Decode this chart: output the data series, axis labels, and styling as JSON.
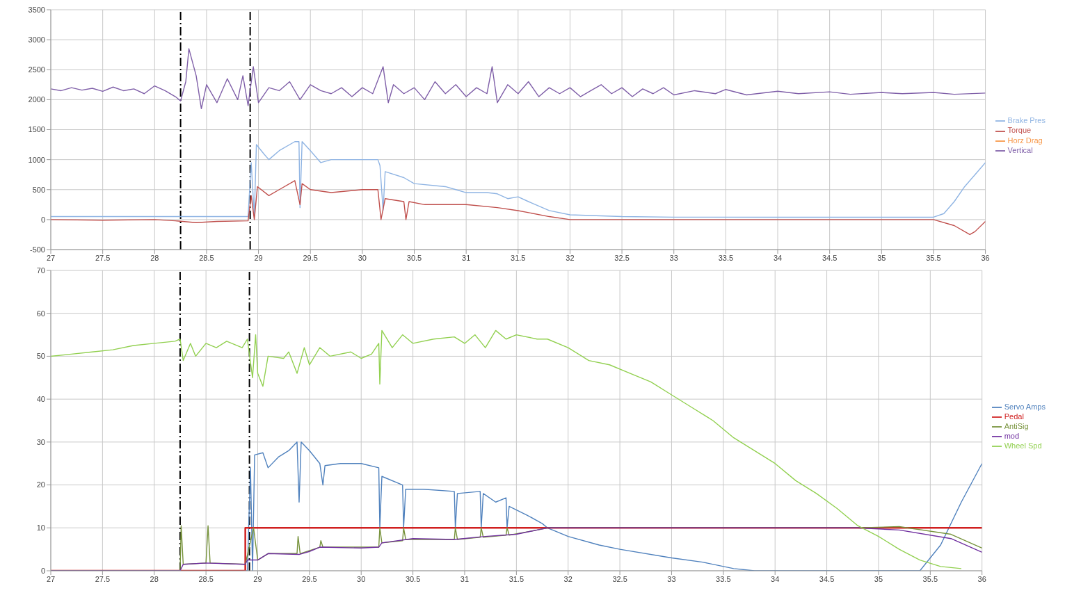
{
  "chart_data": [
    {
      "type": "line",
      "xlim": [
        27,
        36
      ],
      "xticks": [
        27,
        27.5,
        28,
        28.5,
        29,
        29.5,
        30,
        30.5,
        31,
        31.5,
        32,
        32.5,
        33,
        33.5,
        34,
        34.5,
        35,
        35.5,
        36
      ],
      "ylim": [
        -500,
        3500
      ],
      "yticks": [
        -500,
        0,
        500,
        1000,
        1500,
        2000,
        2500,
        3000,
        3500
      ],
      "grid": true,
      "legend": "right",
      "ref_lines": [
        {
          "axis": "x",
          "value": 28.25,
          "color": "#000000",
          "line_style": "dashed"
        },
        {
          "axis": "x",
          "value": 28.92,
          "color": "#000000",
          "line_style": "dashed"
        }
      ],
      "series": [
        {
          "name": "Brake Pres",
          "color": "#8fb4e3",
          "x": [
            27,
            27.5,
            28,
            28.5,
            28.9,
            28.93,
            28.96,
            28.98,
            29.05,
            29.1,
            29.2,
            29.35,
            29.39,
            29.4,
            29.42,
            29.5,
            29.6,
            29.7,
            29.8,
            30,
            30.15,
            30.17,
            30.2,
            30.22,
            30.4,
            30.5,
            30.8,
            30.9,
            31,
            31.2,
            31.3,
            31.4,
            31.5,
            31.6,
            31.8,
            32,
            32.5,
            33,
            34,
            35,
            35.5,
            35.6,
            35.7,
            35.8,
            35.9,
            36
          ],
          "values": [
            50,
            50,
            50,
            50,
            50,
            950,
            50,
            1250,
            1100,
            1000,
            1150,
            1300,
            1300,
            200,
            1300,
            1150,
            950,
            1000,
            1000,
            1000,
            1000,
            900,
            150,
            800,
            700,
            600,
            550,
            500,
            450,
            450,
            430,
            350,
            380,
            300,
            150,
            80,
            50,
            40,
            40,
            40,
            40,
            100,
            300,
            550,
            750,
            950
          ]
        },
        {
          "name": "Torque",
          "color": "#c0504d",
          "x": [
            27,
            27.5,
            28,
            28.2,
            28.4,
            28.6,
            28.9,
            28.93,
            28.96,
            28.99,
            29.1,
            29.2,
            29.35,
            29.4,
            29.42,
            29.5,
            29.7,
            30,
            30.15,
            30.18,
            30.22,
            30.4,
            30.42,
            30.45,
            30.6,
            30.9,
            31,
            31.3,
            31.5,
            31.8,
            32,
            33,
            34,
            35,
            35.5,
            35.7,
            35.85,
            35.9,
            36
          ],
          "values": [
            0,
            -10,
            0,
            -20,
            -50,
            -30,
            -20,
            400,
            0,
            550,
            400,
            500,
            650,
            250,
            600,
            500,
            450,
            500,
            500,
            0,
            350,
            300,
            0,
            300,
            250,
            250,
            250,
            200,
            150,
            50,
            0,
            0,
            0,
            0,
            0,
            -100,
            -250,
            -200,
            -30
          ]
        },
        {
          "name": "Horz Drag",
          "color": "#f79646"
        },
        {
          "name": "Vertical",
          "color": "#7f5fa8",
          "x": [
            27,
            27.1,
            27.2,
            27.3,
            27.4,
            27.5,
            27.6,
            27.7,
            27.8,
            27.9,
            28,
            28.1,
            28.2,
            28.25,
            28.3,
            28.33,
            28.4,
            28.45,
            28.5,
            28.6,
            28.7,
            28.8,
            28.85,
            28.9,
            28.95,
            29,
            29.1,
            29.2,
            29.3,
            29.4,
            29.5,
            29.6,
            29.7,
            29.8,
            29.9,
            30,
            30.1,
            30.2,
            30.25,
            30.3,
            30.4,
            30.5,
            30.6,
            30.7,
            30.8,
            30.9,
            31,
            31.1,
            31.2,
            31.25,
            31.3,
            31.4,
            31.5,
            31.6,
            31.7,
            31.8,
            31.9,
            32,
            32.1,
            32.2,
            32.3,
            32.4,
            32.5,
            32.6,
            32.7,
            32.8,
            32.9,
            33,
            33.2,
            33.4,
            33.5,
            33.7,
            34,
            34.2,
            34.5,
            34.7,
            35,
            35.2,
            35.5,
            35.7,
            36
          ],
          "values": [
            2180,
            2150,
            2200,
            2160,
            2190,
            2140,
            2210,
            2150,
            2180,
            2100,
            2230,
            2150,
            2050,
            1980,
            2300,
            2850,
            2400,
            1850,
            2250,
            1950,
            2350,
            2000,
            2400,
            1900,
            2550,
            1950,
            2200,
            2150,
            2300,
            2000,
            2250,
            2150,
            2100,
            2200,
            2050,
            2200,
            2100,
            2550,
            1950,
            2250,
            2100,
            2200,
            2000,
            2300,
            2100,
            2250,
            2050,
            2200,
            2100,
            2550,
            1950,
            2250,
            2100,
            2300,
            2050,
            2200,
            2100,
            2200,
            2050,
            2150,
            2250,
            2100,
            2200,
            2050,
            2180,
            2100,
            2200,
            2080,
            2150,
            2100,
            2170,
            2080,
            2140,
            2100,
            2130,
            2090,
            2120,
            2100,
            2120,
            2090,
            2110
          ]
        }
      ]
    },
    {
      "type": "line",
      "xlim": [
        27,
        36
      ],
      "xticks": [
        27,
        27.5,
        28,
        28.5,
        29,
        29.5,
        30,
        30.5,
        31,
        31.5,
        32,
        32.5,
        33,
        33.5,
        34,
        34.5,
        35,
        35.5,
        36
      ],
      "ylim": [
        0,
        70
      ],
      "yticks": [
        0,
        10,
        20,
        30,
        40,
        50,
        60,
        70
      ],
      "grid": true,
      "legend": "right",
      "ref_lines": [
        {
          "axis": "x",
          "value": 28.25,
          "color": "#000000",
          "line_style": "dashed"
        },
        {
          "axis": "x",
          "value": 28.92,
          "color": "#000000",
          "line_style": "dashed"
        }
      ],
      "series": [
        {
          "name": "Servo Amps",
          "color": "#4f81bd",
          "x": [
            27,
            28.9,
            28.93,
            28.95,
            28.97,
            29.05,
            29.1,
            29.2,
            29.3,
            29.38,
            29.4,
            29.42,
            29.5,
            29.6,
            29.63,
            29.65,
            29.8,
            30,
            30.17,
            30.18,
            30.2,
            30.4,
            30.41,
            30.43,
            30.6,
            30.9,
            30.91,
            30.93,
            31.15,
            31.16,
            31.18,
            31.3,
            31.4,
            31.41,
            31.43,
            31.6,
            31.75,
            31.8,
            32,
            32.3,
            32.5,
            33,
            33.3,
            33.6,
            33.8,
            35.4,
            35.6,
            35.8,
            36
          ],
          "values": [
            0,
            0,
            24,
            0,
            27,
            27.5,
            24,
            26.5,
            28,
            30,
            16,
            30,
            28,
            25,
            20,
            24.5,
            25,
            25,
            24,
            10,
            22,
            20,
            10,
            19,
            19,
            18.5,
            10,
            18,
            18.5,
            10,
            18,
            16,
            17,
            10,
            15,
            13,
            11,
            10,
            8,
            6,
            5,
            3,
            2,
            0.5,
            0,
            0,
            6,
            16,
            25
          ]
        },
        {
          "name": "Pedal",
          "type": "step",
          "color": "#d02020",
          "x": [
            27,
            28.88,
            36
          ],
          "values": [
            0,
            10,
            10
          ]
        },
        {
          "name": "AntiSig",
          "color": "#77933c",
          "x": [
            27,
            28.25,
            28.26,
            28.28,
            28.5,
            28.52,
            28.54,
            28.88,
            28.96,
            29,
            29.1,
            29.38,
            29.39,
            29.41,
            29.6,
            29.61,
            29.63,
            30.17,
            30.18,
            30.2,
            30.4,
            30.41,
            30.43,
            30.9,
            30.91,
            30.93,
            31.15,
            31.16,
            31.18,
            31.4,
            31.41,
            31.43,
            31.7,
            31.8,
            34.8,
            35.2,
            35.7,
            36
          ],
          "values": [
            0,
            0,
            10.5,
            1.5,
            1.8,
            10.5,
            1.8,
            1.5,
            10,
            2.5,
            4,
            4,
            8,
            4,
            5.5,
            7,
            5.5,
            5.5,
            10,
            6.5,
            7,
            10,
            7.3,
            7.3,
            10,
            7.3,
            7.8,
            10,
            7.8,
            8.3,
            10,
            8.3,
            9.5,
            10,
            10,
            10.3,
            8.5,
            5.3
          ]
        },
        {
          "name": "mod",
          "color": "#7030a0",
          "x": [
            27,
            28.25,
            28.28,
            28.5,
            28.88,
            28.9,
            29,
            29.1,
            29.4,
            29.5,
            29.6,
            30,
            30.17,
            30.2,
            30.5,
            30.9,
            31.2,
            31.5,
            31.7,
            31.8,
            34.8,
            35.2,
            35.7,
            36
          ],
          "values": [
            0,
            0,
            1.5,
            1.8,
            1.5,
            2.5,
            2.5,
            4,
            3.8,
            4.5,
            5.5,
            5.3,
            5.5,
            6.5,
            7.5,
            7.3,
            8,
            8.5,
            9.5,
            10,
            10,
            9.5,
            7.5,
            4.3
          ]
        },
        {
          "name": "Wheel Spd",
          "color": "#92d050",
          "x": [
            27,
            27.2,
            27.4,
            27.6,
            27.8,
            28,
            28.2,
            28.25,
            28.28,
            28.35,
            28.4,
            28.5,
            28.6,
            28.7,
            28.85,
            28.9,
            28.95,
            28.98,
            29,
            29.05,
            29.1,
            29.25,
            29.3,
            29.38,
            29.45,
            29.5,
            29.6,
            29.7,
            29.9,
            30,
            30.1,
            30.17,
            30.18,
            30.2,
            30.3,
            30.4,
            30.5,
            30.7,
            30.9,
            31,
            31.1,
            31.2,
            31.3,
            31.4,
            31.5,
            31.7,
            31.8,
            32,
            32.2,
            32.4,
            32.6,
            32.8,
            33,
            33.2,
            33.4,
            33.6,
            33.8,
            34,
            34.2,
            34.4,
            34.6,
            34.8,
            35,
            35.2,
            35.4,
            35.6,
            35.8
          ],
          "values": [
            50,
            50.5,
            51,
            51.5,
            52.5,
            53,
            53.5,
            54,
            49,
            53,
            50,
            53,
            52,
            53.5,
            52,
            54,
            45,
            55,
            46,
            43,
            50,
            49.5,
            51,
            46,
            52,
            48,
            52,
            50,
            51,
            49.5,
            50.5,
            53,
            43.5,
            56,
            52,
            55,
            53,
            54,
            54.5,
            53,
            55,
            52,
            56,
            54,
            55,
            54,
            54,
            52,
            49,
            48,
            46,
            44,
            41,
            38,
            35,
            31,
            28,
            25,
            21,
            18,
            14.5,
            10.5,
            8,
            5,
            2.5,
            1,
            0.5
          ]
        }
      ]
    }
  ]
}
